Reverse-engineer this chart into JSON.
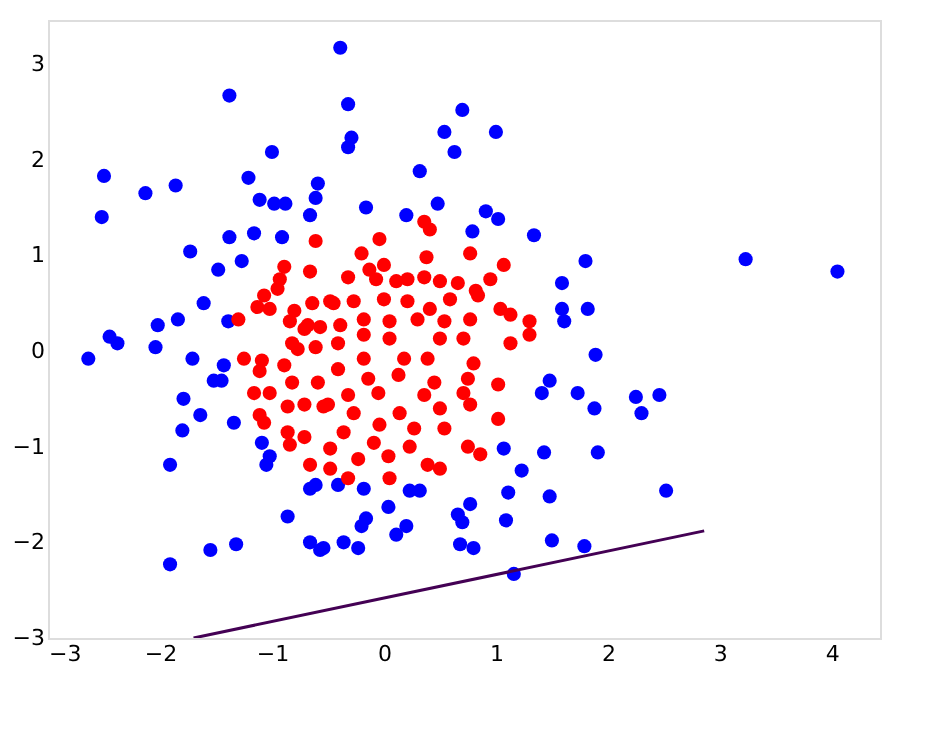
{
  "chart_data": {
    "type": "scatter",
    "xlim": [
      -3,
      4.43
    ],
    "ylim": [
      -3,
      3.46
    ],
    "xticks": [
      -3,
      -2,
      -1,
      0,
      1,
      2,
      3,
      4
    ],
    "yticks": [
      -3,
      -2,
      -1,
      0,
      1,
      2,
      3
    ],
    "grid": false,
    "marker": "circle",
    "series": [
      {
        "color": "#0000ff",
        "x": [
          -0.39,
          -1.38,
          -2.5,
          -2.13,
          -1.86,
          -2.52,
          -1.0,
          -1.21,
          -1.11,
          -0.98,
          -0.88,
          -0.59,
          -0.61,
          -0.66,
          -1.38,
          -1.16,
          -0.91,
          -1.73,
          -1.48,
          -1.27,
          -1.61,
          -2.02,
          -1.84,
          -1.39,
          -2.45,
          -2.64,
          -2.38,
          -2.04,
          -1.71,
          -1.43,
          -1.52,
          -1.45,
          -1.79,
          -1.64,
          -1.8,
          -1.34,
          -1.09,
          -1.02,
          -1.05,
          -1.91,
          -0.66,
          -0.61,
          -0.86,
          -0.66,
          -0.57,
          -1.32,
          -1.55,
          -1.91,
          -0.32,
          -0.29,
          -0.32,
          0.7,
          0.54,
          0.63,
          1.0,
          0.32,
          -0.16,
          0.2,
          0.48,
          0.91,
          1.02,
          0.79,
          1.34,
          1.8,
          1.59,
          1.59,
          1.82,
          1.61,
          3.23,
          4.05,
          1.89,
          1.48,
          1.41,
          1.73,
          1.88,
          1.07,
          1.43,
          1.91,
          1.23,
          -0.41,
          -0.18,
          0.23,
          0.32,
          1.11,
          1.48,
          0.04,
          0.77,
          0.66,
          0.7,
          1.09,
          -0.16,
          -0.2,
          0.11,
          0.2,
          -0.54,
          -0.36,
          -0.23,
          0.68,
          0.8,
          1.5,
          1.79,
          1.16,
          2.25,
          2.3,
          2.46,
          2.52
        ],
        "values": [
          3.17,
          2.67,
          1.83,
          1.65,
          1.73,
          1.4,
          2.08,
          1.81,
          1.58,
          1.54,
          1.54,
          1.75,
          1.6,
          1.42,
          1.19,
          1.23,
          1.19,
          1.04,
          0.85,
          0.94,
          0.5,
          0.27,
          0.33,
          0.31,
          0.15,
          -0.08,
          0.08,
          0.04,
          -0.08,
          -0.15,
          -0.31,
          -0.31,
          -0.5,
          -0.67,
          -0.83,
          -0.75,
          -0.96,
          -1.1,
          -1.19,
          -1.19,
          -1.44,
          -1.4,
          -1.73,
          -2.0,
          -2.08,
          -2.02,
          -2.08,
          -2.23,
          2.58,
          2.23,
          2.13,
          2.52,
          2.29,
          2.08,
          2.29,
          1.88,
          1.5,
          1.42,
          1.54,
          1.46,
          1.38,
          1.25,
          1.21,
          0.94,
          0.71,
          0.44,
          0.44,
          0.31,
          0.96,
          0.83,
          -0.04,
          -0.31,
          -0.44,
          -0.44,
          -0.6,
          -1.02,
          -1.06,
          -1.06,
          -1.25,
          -1.4,
          -1.44,
          -1.46,
          -1.46,
          -1.48,
          -1.52,
          -1.63,
          -1.6,
          -1.71,
          -1.79,
          -1.77,
          -1.75,
          -1.83,
          -1.92,
          -1.83,
          -2.06,
          -2.0,
          -2.06,
          -2.02,
          -2.06,
          -1.98,
          -2.04,
          -2.33,
          -0.48,
          -0.65,
          -0.46,
          -1.46
        ]
      },
      {
        "color": "#ff0000",
        "x": [
          -0.61,
          -0.89,
          -0.66,
          -0.93,
          -0.95,
          -1.07,
          -1.13,
          -1.02,
          -0.8,
          -0.64,
          -0.48,
          -1.3,
          -0.84,
          -0.68,
          -0.57,
          0.36,
          0.41,
          -0.04,
          -0.2,
          0.38,
          0.77,
          1.07,
          0.0,
          -0.13,
          -0.07,
          -0.32,
          0.11,
          0.21,
          0.36,
          0.5,
          0.66,
          0.95,
          0.82,
          -0.45,
          -0.27,
          0.0,
          0.21,
          0.41,
          0.59,
          0.84,
          1.04,
          1.13,
          -0.18,
          0.05,
          0.3,
          0.54,
          0.77,
          1.3,
          -0.39,
          -0.41,
          -0.18,
          0.05,
          0.5,
          0.71,
          1.13,
          1.3,
          -0.41,
          -0.18,
          0.18,
          0.39,
          0.8,
          -0.14,
          0.13,
          0.45,
          0.75,
          1.02,
          -0.32,
          -0.05,
          0.36,
          0.71,
          -0.27,
          0.14,
          0.5,
          0.77,
          -0.5,
          -0.36,
          -0.04,
          0.27,
          0.54,
          1.02,
          -0.48,
          -0.09,
          0.23,
          0.75,
          0.86,
          -0.23,
          0.04,
          0.39,
          0.5,
          -0.48,
          -0.32,
          0.05,
          -1.25,
          -1.09,
          -1.11,
          -0.89,
          -0.82,
          -0.77,
          -0.61,
          -0.71,
          -1.16,
          -1.02,
          -0.82,
          -0.59,
          -0.86,
          -0.71,
          -0.54,
          -1.11,
          -1.07,
          -0.86,
          -0.71,
          -0.84,
          -0.66
        ],
        "values": [
          1.15,
          0.88,
          0.83,
          0.75,
          0.65,
          0.58,
          0.46,
          0.44,
          0.42,
          0.5,
          0.52,
          0.33,
          0.31,
          0.27,
          0.25,
          1.35,
          1.27,
          1.17,
          1.02,
          0.98,
          1.02,
          0.9,
          0.9,
          0.85,
          0.75,
          0.77,
          0.73,
          0.75,
          0.77,
          0.73,
          0.71,
          0.75,
          0.63,
          0.5,
          0.52,
          0.54,
          0.52,
          0.44,
          0.54,
          0.58,
          0.44,
          0.38,
          0.33,
          0.31,
          0.33,
          0.31,
          0.33,
          0.31,
          0.27,
          0.08,
          0.17,
          0.13,
          0.13,
          0.13,
          0.08,
          0.17,
          -0.19,
          -0.08,
          -0.08,
          -0.08,
          -0.13,
          -0.29,
          -0.25,
          -0.33,
          -0.29,
          -0.35,
          -0.46,
          -0.44,
          -0.46,
          -0.44,
          -0.65,
          -0.65,
          -0.6,
          -0.56,
          -0.56,
          -0.85,
          -0.77,
          -0.81,
          -0.81,
          -0.71,
          -1.02,
          -0.96,
          -1.0,
          -1.0,
          -1.08,
          -1.13,
          -1.1,
          -1.19,
          -1.23,
          -1.23,
          -1.33,
          -1.33,
          -0.08,
          -0.1,
          -0.21,
          -0.15,
          0.08,
          0.02,
          0.04,
          0.23,
          -0.44,
          -0.44,
          -0.33,
          -0.33,
          -0.58,
          -0.56,
          -0.58,
          -0.67,
          -0.75,
          -0.85,
          -0.9,
          -0.98,
          -1.19
        ]
      },
      {
        "type": "line",
        "color": "#440154",
        "line_style": "solid",
        "marker": "none",
        "x": [
          -1.7,
          2.86
        ],
        "values": [
          -3,
          -1.88
        ]
      }
    ]
  }
}
